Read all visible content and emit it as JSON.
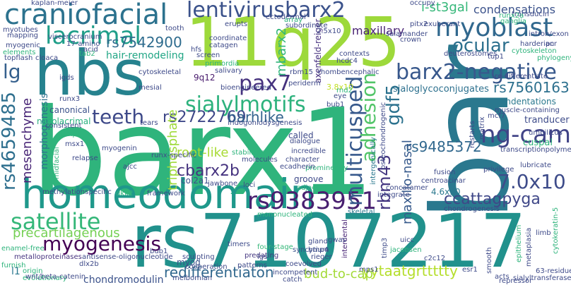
{
  "chart_data": {
    "type": "wordcloud",
    "words": [
      {
        "id": "barx1",
        "text": "barx1",
        "color": "#2fb47c"
      },
      {
        "id": "bar",
        "text": "bar",
        "color": "#2a788e"
      },
      {
        "id": "hbs",
        "text": "hbs",
        "color": "#26828e"
      },
      {
        "id": "11q25",
        "text": "11q25",
        "color": "#9dd93b"
      },
      {
        "id": "rs7107217",
        "text": "rs7107217",
        "color": "#21918c"
      },
      {
        "id": "homeodomain",
        "text": "homeodomain",
        "color": "#1f988b"
      },
      {
        "id": "craniofacial",
        "text": "craniofacial",
        "color": "#2c728e"
      },
      {
        "id": "lentivirusbarx2",
        "text": "lentivirusbarx2",
        "color": "#3b528b"
      },
      {
        "id": "myoblast",
        "text": "myoblast",
        "color": "#31688e"
      },
      {
        "id": "lacrimal",
        "text": "lacrimal",
        "color": "#1f9e89"
      },
      {
        "id": "barx2-negative",
        "text": "barx2-negative",
        "color": "#38588c"
      },
      {
        "id": "ocular",
        "text": "ocular",
        "color": "#2d708e"
      },
      {
        "id": "sialylmotifs",
        "text": "sialylmotifs",
        "color": "#2db27d"
      },
      {
        "id": "teeth",
        "text": "teeth",
        "color": "#3e4989"
      },
      {
        "id": "pax7",
        "text": "pax7",
        "color": "#46327e"
      },
      {
        "id": "rs9383951",
        "text": "rs9383951",
        "color": "#481f70"
      },
      {
        "id": "satellite",
        "text": "satellite",
        "color": "#35b779"
      },
      {
        "id": "myogenesis",
        "text": "myogenesis",
        "color": "#440154"
      },
      {
        "id": "precartilagenous",
        "text": "precartilagenous",
        "color": "#75d054"
      },
      {
        "id": "ng-cam",
        "text": "ng-cam",
        "color": "#414487"
      },
      {
        "id": "7.0x10",
        "text": "7.0x10",
        "color": "#3e4c8a"
      },
      {
        "id": "ccattagpyga",
        "text": "ccattagpyga",
        "color": "#3f4788"
      },
      {
        "id": "multicusped",
        "text": "multicusped",
        "color": "#37598c"
      },
      {
        "id": "adhesion",
        "text": "adhesion",
        "color": "#52c569"
      },
      {
        "id": "rs4659485",
        "text": "rs4659485",
        "color": "#2e6f8e"
      },
      {
        "id": "lg",
        "text": "lg",
        "color": "#35608d"
      },
      {
        "id": "rs7542900",
        "text": "rs7542900",
        "color": "#2f6c8e"
      },
      {
        "id": "rs2722769",
        "text": "rs2722769",
        "color": "#3f4889"
      },
      {
        "id": "cbarx2b",
        "text": "cbarx2b",
        "color": "#46337f"
      },
      {
        "id": "barhlike",
        "text": "barhlike",
        "color": "#33638d"
      },
      {
        "id": "rs9485372",
        "text": "rs9485372",
        "color": "#31688e"
      },
      {
        "id": "gdf5",
        "text": "gdf5",
        "color": "#2c728e"
      },
      {
        "id": "rs7560163",
        "text": "rs7560163",
        "color": "#2d708e"
      },
      {
        "id": "rbm43",
        "text": "rbm43",
        "color": "#453781"
      },
      {
        "id": "yytaatgrttttty",
        "text": "yytaatgrttttty",
        "color": "#b5de2b"
      },
      {
        "id": "redifferentiaton",
        "text": "redifferentiaton",
        "color": "#31688e"
      },
      {
        "id": "chondromodulin",
        "text": "chondromodulin",
        "color": "#3b528b"
      },
      {
        "id": "bud-to-cap",
        "text": "bud-to-cap",
        "color": "#a2da37"
      },
      {
        "id": "maxillo-nasal",
        "text": "maxillo-nasal",
        "color": "#375a8c"
      },
      {
        "id": "mesenchyme",
        "text": "mesenchyme",
        "color": "#482576"
      },
      {
        "id": "triphosphate",
        "text": "triphosphate",
        "color": "#9fda3a"
      },
      {
        "id": "root-like",
        "text": "root-like",
        "color": "#a8db34"
      },
      {
        "id": "hair-remodeling",
        "text": "hair-remodeling",
        "color": "#21a685"
      },
      {
        "id": "i-st3gal",
        "text": "i-st3gal",
        "color": "#35b779"
      },
      {
        "id": "condensations",
        "text": "condensations",
        "color": "#3b528b"
      },
      {
        "id": "maxillary",
        "text": "maxillary",
        "color": "#482173"
      },
      {
        "id": "mbarx2",
        "text": "mbarx2",
        "color": "#30b57b"
      },
      {
        "id": "morphogenesis",
        "text": "morphogenesis",
        "color": "#2d718e"
      },
      {
        "id": "canonical",
        "text": "canonical",
        "color": "#3b528b"
      },
      {
        "id": "nasolacrimal",
        "text": "nasolacrimal",
        "color": "#2ab07f"
      },
      {
        "id": "sialoglycoconjugates",
        "text": "sialoglycoconjugates",
        "color": "#2d708e"
      },
      {
        "id": "axenfeld-reiger",
        "text": "axenfeld-reiger",
        "color": "#46307e"
      },
      {
        "id": "tranducer",
        "text": "tranducer",
        "color": "#3e4c8a"
      },
      {
        "id": "cuspal",
        "text": "cuspal",
        "color": "#2fb47c"
      },
      {
        "id": "indentations",
        "text": "indentations",
        "color": "#2a788e"
      },
      {
        "id": "col2a1",
        "text": "col2a1",
        "color": "#3c508b"
      },
      {
        "id": "groove",
        "text": "groove",
        "color": "#3e4a89"
      },
      {
        "id": "called",
        "text": "called",
        "color": "#3e4a89"
      },
      {
        "id": "4.6x10",
        "text": "4.6x10",
        "color": "#2a788e"
      },
      {
        "id": "myod",
        "text": "myod",
        "color": "#3b528b"
      },
      {
        "id": "l1",
        "text": "l1",
        "color": "#2a788e"
      },
      {
        "id": "9q12",
        "text": "9q12",
        "color": "#481a6c"
      },
      {
        "id": "cytoskeleton",
        "text": "cytoskeleton",
        "color": "#2fb47c"
      },
      {
        "id": "chondrogenesis",
        "text": "chondrogenesis",
        "color": "#3e4a89"
      },
      {
        "id": "3.8x10",
        "text": "3.8x10",
        "color": "#c2df23"
      },
      {
        "id": "metalloproteinases",
        "text": "metalloproteinases",
        "color": "#46337f"
      },
      {
        "id": "antisense-oligonucleotide",
        "text": "antisense-oligonucleotide",
        "color": "#3e4a89"
      },
      {
        "id": "syncytium",
        "text": "syncytium",
        "color": "#3b528b"
      },
      {
        "id": "predating",
        "text": "predating",
        "color": "#453781"
      },
      {
        "id": "coevolved",
        "text": "coevolved",
        "color": "#3e4a89"
      },
      {
        "id": "interdental",
        "text": "interdental",
        "color": "#482475"
      },
      {
        "id": "timers",
        "text": "timers",
        "color": "#3e4c8a"
      },
      {
        "id": "four-stage",
        "text": "four-stage",
        "color": "#35b779"
      },
      {
        "id": "gland",
        "text": "gland",
        "color": "#3e4a89"
      },
      {
        "id": "rieger",
        "text": "rieger",
        "color": "#3e4a89"
      },
      {
        "id": "skeletal",
        "text": "skeletal",
        "color": "#2a788e"
      },
      {
        "id": "mononucleated",
        "text": "mononucleated",
        "color": "#2fb47c"
      },
      {
        "id": "integrate",
        "text": "integrate",
        "color": "#3e4a89"
      },
      {
        "id": "concatamer",
        "text": "concatamer",
        "color": "#3e4a89"
      },
      {
        "id": "fusion",
        "text": "fusion",
        "color": "#3e4a89"
      },
      {
        "id": "centroacinar",
        "text": "centroacinar",
        "color": "#3e4a89"
      },
      {
        "id": "intergenically",
        "text": "intergenically",
        "color": "#2a788e"
      },
      {
        "id": "dialogue",
        "text": "dialogue",
        "color": "#3e4a89"
      },
      {
        "id": "incredible",
        "text": "incredible",
        "color": "#3e4a89"
      },
      {
        "id": "stabilizes",
        "text": "stabilizes",
        "color": "#2fb47c"
      },
      {
        "id": "character",
        "text": "character",
        "color": "#3e4a89"
      },
      {
        "id": "prominently",
        "text": "prominently",
        "color": "#2fb47c"
      },
      {
        "id": "molecules",
        "text": "molecules",
        "color": "#3e4a89"
      },
      {
        "id": "jawbone",
        "text": "jawbone",
        "color": "#3e4a89"
      },
      {
        "id": "loci",
        "text": "loci",
        "color": "#3e4a89"
      },
      {
        "id": "adjacent",
        "text": "adjacent",
        "color": "#2fb47c"
      },
      {
        "id": "framework",
        "text": "framework",
        "color": "#3e4a89"
      },
      {
        "id": "methylationspecific",
        "text": "methylationspecific",
        "color": "#3e4a89"
      },
      {
        "id": "enamel-free",
        "text": "enamel-free",
        "color": "#2fb47c"
      },
      {
        "id": "furnish",
        "text": "furnish",
        "color": "#2fb47c"
      },
      {
        "id": "origin",
        "text": "origin",
        "color": "#2fb47c"
      },
      {
        "id": "evolutionary",
        "text": "evolutionary",
        "color": "#2fb47c"
      },
      {
        "id": "wnt-beta-catenin",
        "text": "wnt/beta-catenin",
        "color": "#3e4a89"
      },
      {
        "id": "dlx2b",
        "text": "dlx2b",
        "color": "#3e4a89"
      },
      {
        "id": "bub1",
        "text": "bub1",
        "color": "#3e4a89"
      },
      {
        "id": "cloaca",
        "text": "cloaca",
        "color": "#3e4a89"
      },
      {
        "id": "sculpting",
        "text": "sculpting",
        "color": "#3e4a89"
      },
      {
        "id": "cooperation",
        "text": "cooperation",
        "color": "#3e4a89"
      },
      {
        "id": "meibomian",
        "text": "meibomian",
        "color": "#3e4a89"
      },
      {
        "id": "catch",
        "text": "catch",
        "color": "#3e4a89"
      },
      {
        "id": "incompetent",
        "text": "incompetent",
        "color": "#3e4a89"
      },
      {
        "id": "patterns",
        "text": "patterns",
        "color": "#3e4a89"
      },
      {
        "id": "lgs",
        "text": "lgs",
        "color": "#3e4a89"
      },
      {
        "id": "bmp4",
        "text": "bmp4",
        "color": "#3e4a89"
      },
      {
        "id": "gwas",
        "text": "gwas",
        "color": "#3e4a89"
      },
      {
        "id": "mps1",
        "text": "mps1",
        "color": "#3e4a89"
      },
      {
        "id": "timp3",
        "text": "timp3",
        "color": "#3e4a89"
      },
      {
        "id": "jacobsen",
        "text": "jacobsen",
        "color": "#2fb47c"
      },
      {
        "id": "c2c12",
        "text": "c2c12",
        "color": "#3e4a89"
      },
      {
        "id": "uicc",
        "text": "uicc",
        "color": "#3e4a89"
      },
      {
        "id": "esr1",
        "text": "esr1",
        "color": "#3e4a89"
      },
      {
        "id": "smooth",
        "text": "smooth",
        "color": "#3e4a89"
      },
      {
        "id": "acts",
        "text": "acts",
        "color": "#3e4a89"
      },
      {
        "id": "repressor",
        "text": "repressor",
        "color": "#3e4a89"
      },
      {
        "id": "sialyltransferases",
        "text": "sialyltransferases",
        "color": "#3e4a89"
      },
      {
        "id": "63-residue",
        "text": "63-residue",
        "color": "#3e4a89"
      },
      {
        "id": "cytokeratin-5",
        "text": "cytokeratin-5",
        "color": "#2fb47c"
      },
      {
        "id": "limb",
        "text": "limb",
        "color": "#3e4a89"
      },
      {
        "id": "epithelium",
        "text": "epithelium",
        "color": "#2fb47c"
      },
      {
        "id": "metaplasia",
        "text": "metaplasia",
        "color": "#3e4a89"
      },
      {
        "id": "lubricate",
        "text": "lubricate",
        "color": "#3e4a89"
      },
      {
        "id": "privilege",
        "text": "privilege",
        "color": "#3e4a89"
      },
      {
        "id": "transcriptionpolymerase",
        "text": "transcriptionpolymerase",
        "color": "#3e4a89"
      },
      {
        "id": "umbilicus",
        "text": "umbilicus",
        "color": "#3e4a89"
      },
      {
        "id": "muscle-containing",
        "text": "muscle-containing",
        "color": "#3e4a89"
      },
      {
        "id": "mcf7",
        "text": "mcf7",
        "color": "#3e4a89"
      },
      {
        "id": "re-differentiate",
        "text": "re-differentiate",
        "color": "#3e4a89"
      },
      {
        "id": "harderian",
        "text": "harderian",
        "color": "#3e4a89"
      },
      {
        "id": "tup1",
        "text": "tup1",
        "color": "#3e4a89"
      },
      {
        "id": "phylogeny",
        "text": "phylogeny",
        "color": "#2fb47c"
      },
      {
        "id": "pcr",
        "text": "pcr",
        "color": "#3e4a89"
      },
      {
        "id": "intron-exon",
        "text": "intron/exon",
        "color": "#3e4a89"
      },
      {
        "id": "deuterostomes",
        "text": "deuterostomes",
        "color": "#3e4a89"
      },
      {
        "id": "crown",
        "text": "crown",
        "color": "#3e4a89"
      },
      {
        "id": "salamander",
        "text": "salamander",
        "color": "#3e4a89"
      },
      {
        "id": "exuberant",
        "text": "exuberant",
        "color": "#3e4a89"
      },
      {
        "id": "pitx2",
        "text": "pitx2",
        "color": "#3e4a89"
      },
      {
        "id": "2.5x10",
        "text": "2.5x10",
        "color": "#3e4a89"
      },
      {
        "id": "contexts",
        "text": "contexts",
        "color": "#3e4a89"
      },
      {
        "id": "hcdc4",
        "text": "hcdc4",
        "color": "#3e4a89"
      },
      {
        "id": "transducin",
        "text": "transducin",
        "color": "#3e4a89"
      },
      {
        "id": "runx2a",
        "text": "runx2a",
        "color": "#2fb47c"
      },
      {
        "id": "occupy",
        "text": "occupy",
        "color": "#3e4a89"
      },
      {
        "id": "subordinate",
        "text": "subordinate",
        "color": "#3e4a89"
      },
      {
        "id": "erupts",
        "text": "erupts",
        "color": "#3e4a89"
      },
      {
        "id": "ectodermal",
        "text": "ectodermal",
        "color": "#3e4a89"
      },
      {
        "id": "tooth",
        "text": "tooth",
        "color": "#3e4a89"
      },
      {
        "id": "coordinate",
        "text": "coordinate",
        "color": "#3e4a89"
      },
      {
        "id": "catagen",
        "text": "catagen",
        "color": "#3e4a89"
      },
      {
        "id": "hfs",
        "text": "hfs",
        "color": "#3e4a89"
      },
      {
        "id": "screen",
        "text": "screen",
        "color": "#3e4a89"
      },
      {
        "id": "primordia",
        "text": "primordia",
        "color": "#2fb47c"
      },
      {
        "id": "salivary",
        "text": "salivary",
        "color": "#3e4a89"
      },
      {
        "id": "rbm15",
        "text": "rbm15",
        "color": "#3e4a89"
      },
      {
        "id": "rhombencephalic",
        "text": "rhombencephalic",
        "color": "#3e4a89"
      },
      {
        "id": "periderm",
        "text": "periderm",
        "color": "#3e4a89"
      },
      {
        "id": "bioengineered",
        "text": "bioengineered",
        "color": "#3e4a89"
      },
      {
        "id": "cytoskeletal",
        "text": "cytoskeletal",
        "color": "#3e4a89"
      },
      {
        "id": "igds",
        "text": "igds",
        "color": "#3e4a89"
      },
      {
        "id": "tab2",
        "text": "tab2",
        "color": "#2fb47c"
      },
      {
        "id": "kaplan-meier",
        "text": "kaplan-meier",
        "color": "#3e4a89"
      },
      {
        "id": "myotubes",
        "text": "myotubes",
        "color": "#3e4a89"
      },
      {
        "id": "mapping",
        "text": "mapping",
        "color": "#3e4a89"
      },
      {
        "id": "viscerocranium",
        "text": "viscerocranium",
        "color": "#3e4a89"
      },
      {
        "id": "17-amino",
        "text": "17-amino",
        "color": "#3e4a89"
      },
      {
        "id": "acid",
        "text": "acid",
        "color": "#3e4a89"
      },
      {
        "id": "myogenic",
        "text": "myogenic",
        "color": "#3e4a89"
      },
      {
        "id": "elements",
        "text": "elements",
        "color": "#2fb47c"
      },
      {
        "id": "topflash",
        "text": "topflash",
        "color": "#3e4a89"
      },
      {
        "id": "mesial",
        "text": "mesial",
        "color": "#3e4a89"
      },
      {
        "id": "bub1-2",
        "text": "bub1",
        "color": "#3e4a89"
      },
      {
        "id": "runx3",
        "text": "runx3",
        "color": "#3e4a89"
      },
      {
        "id": "consistent",
        "text": "consistent",
        "color": "#3e4a89"
      },
      {
        "id": "tears",
        "text": "tears",
        "color": "#3e4a89"
      },
      {
        "id": "timp1",
        "text": "timp1",
        "color": "#2fb47c"
      },
      {
        "id": "msx1",
        "text": "msx1",
        "color": "#3e4a89"
      },
      {
        "id": "myogenin",
        "text": "myogenin",
        "color": "#3e4a89"
      },
      {
        "id": "runx-specific",
        "text": "runx-specific",
        "color": "#3e4a89"
      },
      {
        "id": "iridogoniodysgenesis",
        "text": "iridogoniodysgenesis",
        "color": "#3e4a89"
      },
      {
        "id": "ecadherin",
        "text": "ecadherin",
        "color": "#3e4a89"
      },
      {
        "id": "ajcc",
        "text": "ajcc",
        "color": "#3e4a89"
      },
      {
        "id": "relapse",
        "text": "relapse",
        "color": "#3e4a89"
      },
      {
        "id": "midfacial",
        "text": "midfacial",
        "color": "#2fb47c"
      },
      {
        "id": "osteochondrogenic",
        "text": "osteochondrogenic",
        "color": "#3e4a89"
      },
      {
        "id": "restarts",
        "text": "restarts",
        "color": "#3e4a89"
      },
      {
        "id": "matrix",
        "text": "matrix",
        "color": "#3e4a89"
      },
      {
        "id": "eye",
        "text": "eye",
        "color": "#3e4a89"
      },
      {
        "id": "rnd2",
        "text": "rnd2",
        "color": "#2fb47c"
      },
      {
        "id": "array",
        "text": "array",
        "color": "#2fb47c"
      },
      {
        "id": "ganglia",
        "text": "ganglia",
        "color": "#2fb47c"
      },
      {
        "id": "dkk2",
        "text": "dkk2",
        "color": "#2fb47c"
      }
    ]
  }
}
